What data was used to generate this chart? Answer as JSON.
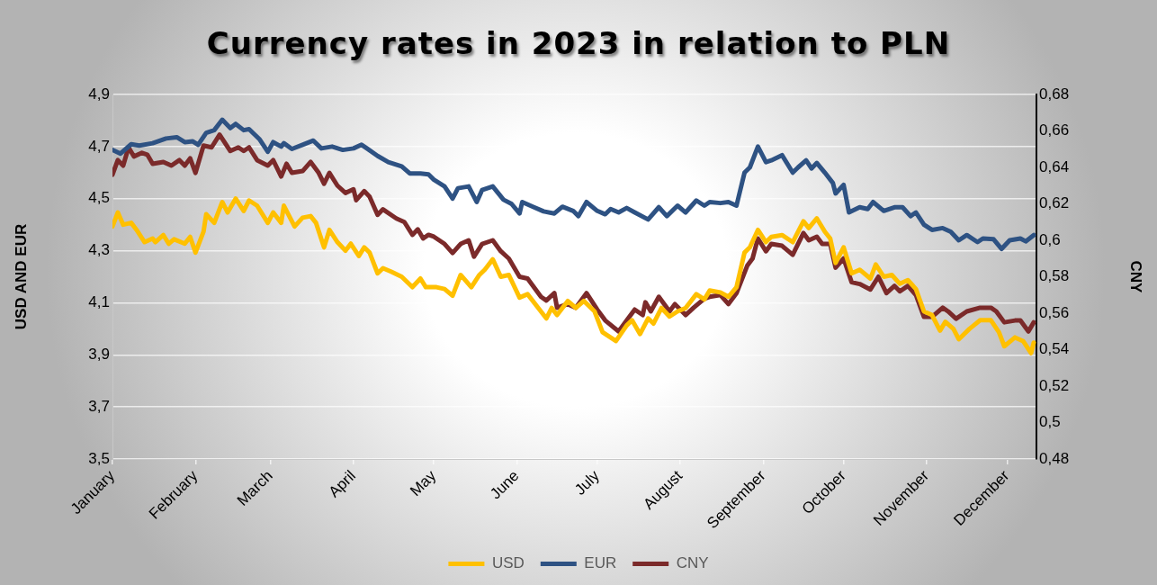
{
  "chart_data": {
    "type": "line",
    "title": "Currency rates in 2023 in relation to PLN",
    "ylabel": "USD AND EUR",
    "y2label": "CNY",
    "xlim": [
      "2023-01-01",
      "2023-12-12"
    ],
    "xticks": [
      {
        "value": "2023-01-01",
        "label": "January"
      },
      {
        "value": "2023-02-01",
        "label": "February"
      },
      {
        "value": "2023-03-01",
        "label": "March"
      },
      {
        "value": "2023-04-01",
        "label": "April"
      },
      {
        "value": "2023-05-01",
        "label": "May"
      },
      {
        "value": "2023-06-01",
        "label": "June"
      },
      {
        "value": "2023-07-01",
        "label": "July"
      },
      {
        "value": "2023-08-01",
        "label": "August"
      },
      {
        "value": "2023-09-01",
        "label": "September"
      },
      {
        "value": "2023-10-01",
        "label": "October"
      },
      {
        "value": "2023-11-01",
        "label": "November"
      },
      {
        "value": "2023-12-01",
        "label": "December"
      }
    ],
    "ylim": [
      3.5,
      4.9
    ],
    "yticks": [
      {
        "value": 3.5,
        "label": "3,5"
      },
      {
        "value": 3.7,
        "label": "3,7"
      },
      {
        "value": 3.9,
        "label": "3,9"
      },
      {
        "value": 4.1,
        "label": "4,1"
      },
      {
        "value": 4.3,
        "label": "4,3"
      },
      {
        "value": 4.5,
        "label": "4,5"
      },
      {
        "value": 4.7,
        "label": "4,7"
      },
      {
        "value": 4.9,
        "label": "4,9"
      }
    ],
    "y2lim": [
      0.48,
      0.68
    ],
    "y2ticks": [
      {
        "value": 0.48,
        "label": "0,48"
      },
      {
        "value": 0.5,
        "label": "0,5"
      },
      {
        "value": 0.52,
        "label": "0,52"
      },
      {
        "value": 0.54,
        "label": "0,54"
      },
      {
        "value": 0.56,
        "label": "0,56"
      },
      {
        "value": 0.58,
        "label": "0,58"
      },
      {
        "value": 0.6,
        "label": "0,6"
      },
      {
        "value": 0.62,
        "label": "0,62"
      },
      {
        "value": 0.64,
        "label": "0,64"
      },
      {
        "value": 0.66,
        "label": "0,66"
      },
      {
        "value": 0.68,
        "label": "0,68"
      }
    ],
    "grid": "y",
    "legend": "bottom",
    "marker": "none",
    "line_style": "solid",
    "series": [
      {
        "name": "USD",
        "color": "#ffc000",
        "x": [
          "2023-01-01",
          "2023-01-03",
          "2023-01-05",
          "2023-01-08",
          "2023-01-10",
          "2023-01-13",
          "2023-01-16",
          "2023-01-17",
          "2023-01-20",
          "2023-01-22",
          "2023-01-24",
          "2023-01-28",
          "2023-01-30",
          "2023-02-01",
          "2023-02-04",
          "2023-02-05",
          "2023-02-08",
          "2023-02-11",
          "2023-02-13",
          "2023-02-16",
          "2023-02-19",
          "2023-02-21",
          "2023-02-24",
          "2023-02-28",
          "2023-03-02",
          "2023-03-05",
          "2023-03-06",
          "2023-03-10",
          "2023-03-13",
          "2023-03-16",
          "2023-03-18",
          "2023-03-21",
          "2023-03-23",
          "2023-03-26",
          "2023-03-29",
          "2023-03-31",
          "2023-04-03",
          "2023-04-05",
          "2023-04-07",
          "2023-04-10",
          "2023-04-12",
          "2023-04-15",
          "2023-04-19",
          "2023-04-23",
          "2023-04-26",
          "2023-04-28",
          "2023-05-02",
          "2023-05-05",
          "2023-05-08",
          "2023-05-11",
          "2023-05-15",
          "2023-05-18",
          "2023-05-20",
          "2023-05-23",
          "2023-05-26",
          "2023-05-29",
          "2023-06-02",
          "2023-06-05",
          "2023-06-09",
          "2023-06-12",
          "2023-06-14",
          "2023-06-16",
          "2023-06-20",
          "2023-06-23",
          "2023-06-26",
          "2023-06-30",
          "2023-07-03",
          "2023-07-08",
          "2023-07-12",
          "2023-07-14",
          "2023-07-17",
          "2023-07-20",
          "2023-07-22",
          "2023-07-25",
          "2023-07-28",
          "2023-07-31",
          "2023-08-03",
          "2023-08-07",
          "2023-08-10",
          "2023-08-12",
          "2023-08-16",
          "2023-08-19",
          "2023-08-22",
          "2023-08-25",
          "2023-08-27",
          "2023-08-30",
          "2023-09-02",
          "2023-09-04",
          "2023-09-08",
          "2023-09-12",
          "2023-09-16",
          "2023-09-18",
          "2023-09-21",
          "2023-09-24",
          "2023-09-26",
          "2023-09-28",
          "2023-10-01",
          "2023-10-04",
          "2023-10-07",
          "2023-10-11",
          "2023-10-13",
          "2023-10-16",
          "2023-10-19",
          "2023-10-22",
          "2023-10-25",
          "2023-10-28",
          "2023-10-31",
          "2023-11-03",
          "2023-11-06",
          "2023-11-08",
          "2023-11-11",
          "2023-11-13",
          "2023-11-17",
          "2023-11-21",
          "2023-11-25",
          "2023-11-28",
          "2023-11-30",
          "2023-12-04",
          "2023-12-07",
          "2023-12-10",
          "2023-12-11"
        ],
        "values": [
          4.393,
          4.447,
          4.4,
          4.407,
          4.38,
          4.333,
          4.347,
          4.333,
          4.36,
          4.327,
          4.344,
          4.327,
          4.353,
          4.293,
          4.373,
          4.44,
          4.407,
          4.487,
          4.447,
          4.5,
          4.453,
          4.493,
          4.473,
          4.407,
          4.447,
          4.407,
          4.473,
          4.393,
          4.427,
          4.433,
          4.407,
          4.313,
          4.38,
          4.333,
          4.3,
          4.327,
          4.28,
          4.313,
          4.293,
          4.213,
          4.233,
          4.22,
          4.2,
          4.16,
          4.193,
          4.16,
          4.16,
          4.153,
          4.127,
          4.207,
          4.16,
          4.207,
          4.227,
          4.267,
          4.2,
          4.207,
          4.12,
          4.133,
          4.08,
          4.04,
          4.08,
          4.053,
          4.107,
          4.08,
          4.107,
          4.067,
          3.987,
          3.953,
          4.013,
          4.033,
          3.98,
          4.04,
          4.02,
          4.08,
          4.047,
          4.067,
          4.08,
          4.133,
          4.113,
          4.147,
          4.14,
          4.123,
          4.16,
          4.293,
          4.313,
          4.38,
          4.333,
          4.353,
          4.36,
          4.333,
          4.413,
          4.387,
          4.424,
          4.373,
          4.347,
          4.253,
          4.313,
          4.213,
          4.227,
          4.193,
          4.247,
          4.2,
          4.207,
          4.173,
          4.187,
          4.153,
          4.067,
          4.053,
          3.993,
          4.027,
          4,
          3.96,
          4,
          4.033,
          4.033,
          3.987,
          3.933,
          3.967,
          3.953,
          3.907,
          3.947
        ]
      },
      {
        "name": "EUR",
        "color": "#2e5283",
        "x": [
          "2023-01-01",
          "2023-01-04",
          "2023-01-08",
          "2023-01-11",
          "2023-01-16",
          "2023-01-21",
          "2023-01-25",
          "2023-01-28",
          "2023-01-31",
          "2023-02-02",
          "2023-02-05",
          "2023-02-08",
          "2023-02-11",
          "2023-02-14",
          "2023-02-16",
          "2023-02-19",
          "2023-02-21",
          "2023-02-25",
          "2023-02-28",
          "2023-03-02",
          "2023-03-05",
          "2023-03-06",
          "2023-03-09",
          "2023-03-13",
          "2023-03-17",
          "2023-03-20",
          "2023-03-24",
          "2023-03-28",
          "2023-04-01",
          "2023-04-04",
          "2023-04-06",
          "2023-04-10",
          "2023-04-14",
          "2023-04-19",
          "2023-04-22",
          "2023-04-26",
          "2023-04-29",
          "2023-05-01",
          "2023-05-05",
          "2023-05-08",
          "2023-05-10",
          "2023-05-14",
          "2023-05-17",
          "2023-05-19",
          "2023-05-23",
          "2023-05-27",
          "2023-05-30",
          "2023-06-02",
          "2023-06-03",
          "2023-06-07",
          "2023-06-11",
          "2023-06-15",
          "2023-06-18",
          "2023-06-22",
          "2023-06-24",
          "2023-06-27",
          "2023-07-01",
          "2023-07-04",
          "2023-07-06",
          "2023-07-09",
          "2023-07-12",
          "2023-07-15",
          "2023-07-20",
          "2023-07-24",
          "2023-07-27",
          "2023-07-31",
          "2023-08-03",
          "2023-08-07",
          "2023-08-10",
          "2023-08-12",
          "2023-08-16",
          "2023-08-19",
          "2023-08-22",
          "2023-08-25",
          "2023-08-27",
          "2023-08-30",
          "2023-09-02",
          "2023-09-04",
          "2023-09-08",
          "2023-09-12",
          "2023-09-14",
          "2023-09-17",
          "2023-09-19",
          "2023-09-21",
          "2023-09-24",
          "2023-09-27",
          "2023-09-28",
          "2023-10-01",
          "2023-10-03",
          "2023-10-07",
          "2023-10-10",
          "2023-10-12",
          "2023-10-16",
          "2023-10-20",
          "2023-10-23",
          "2023-10-26",
          "2023-10-28",
          "2023-10-31",
          "2023-11-03",
          "2023-11-07",
          "2023-11-10",
          "2023-11-13",
          "2023-11-16",
          "2023-11-20",
          "2023-11-22",
          "2023-11-26",
          "2023-11-29",
          "2023-12-02",
          "2023-12-06",
          "2023-12-08",
          "2023-12-11"
        ],
        "values": [
          4.687,
          4.673,
          4.709,
          4.704,
          4.713,
          4.731,
          4.736,
          4.717,
          4.72,
          4.707,
          4.753,
          4.763,
          4.803,
          4.771,
          4.787,
          4.763,
          4.767,
          4.727,
          4.68,
          4.717,
          4.7,
          4.713,
          4.691,
          4.707,
          4.723,
          4.693,
          4.7,
          4.687,
          4.693,
          4.707,
          4.693,
          4.664,
          4.64,
          4.624,
          4.597,
          4.597,
          4.593,
          4.573,
          4.547,
          4.5,
          4.54,
          4.547,
          4.487,
          4.533,
          4.547,
          4.496,
          4.48,
          4.443,
          4.487,
          4.469,
          4.451,
          4.443,
          4.469,
          4.453,
          4.433,
          4.487,
          4.453,
          4.44,
          4.46,
          4.447,
          4.464,
          4.447,
          4.42,
          4.467,
          4.433,
          4.473,
          4.447,
          4.493,
          4.473,
          4.487,
          4.483,
          4.487,
          4.473,
          4.6,
          4.62,
          4.7,
          4.64,
          4.647,
          4.667,
          4.6,
          4.62,
          4.647,
          4.616,
          4.637,
          4.6,
          4.56,
          4.52,
          4.553,
          4.447,
          4.467,
          4.46,
          4.487,
          4.453,
          4.467,
          4.467,
          4.433,
          4.447,
          4.4,
          4.38,
          4.387,
          4.373,
          4.34,
          4.36,
          4.333,
          4.347,
          4.344,
          4.307,
          4.34,
          4.347,
          4.336,
          4.36
        ]
      },
      {
        "name": "CNY",
        "color": "#7b2a2a",
        "axis": "y2",
        "x": [
          "2023-01-01",
          "2023-01-03",
          "2023-01-05",
          "2023-01-07",
          "2023-01-09",
          "2023-01-12",
          "2023-01-14",
          "2023-01-16",
          "2023-01-20",
          "2023-01-23",
          "2023-01-26",
          "2023-01-28",
          "2023-01-30",
          "2023-02-01",
          "2023-02-04",
          "2023-02-07",
          "2023-02-10",
          "2023-02-14",
          "2023-02-17",
          "2023-02-19",
          "2023-02-21",
          "2023-02-24",
          "2023-02-28",
          "2023-03-02",
          "2023-03-05",
          "2023-03-07",
          "2023-03-09",
          "2023-03-13",
          "2023-03-16",
          "2023-03-19",
          "2023-03-21",
          "2023-03-23",
          "2023-03-26",
          "2023-03-29",
          "2023-04-01",
          "2023-04-02",
          "2023-04-05",
          "2023-04-07",
          "2023-04-10",
          "2023-04-12",
          "2023-04-17",
          "2023-04-20",
          "2023-04-23",
          "2023-04-25",
          "2023-04-27",
          "2023-04-29",
          "2023-05-01",
          "2023-05-05",
          "2023-05-08",
          "2023-05-11",
          "2023-05-14",
          "2023-05-16",
          "2023-05-19",
          "2023-05-23",
          "2023-05-26",
          "2023-05-29",
          "2023-06-02",
          "2023-06-05",
          "2023-06-10",
          "2023-06-12",
          "2023-06-15",
          "2023-06-16",
          "2023-06-20",
          "2023-06-23",
          "2023-06-27",
          "2023-07-01",
          "2023-07-04",
          "2023-07-09",
          "2023-07-12",
          "2023-07-15",
          "2023-07-18",
          "2023-07-19",
          "2023-07-21",
          "2023-07-24",
          "2023-07-28",
          "2023-07-30",
          "2023-08-03",
          "2023-08-06",
          "2023-08-10",
          "2023-08-12",
          "2023-08-16",
          "2023-08-19",
          "2023-08-22",
          "2023-08-26",
          "2023-08-28",
          "2023-08-30",
          "2023-09-02",
          "2023-09-04",
          "2023-09-08",
          "2023-09-12",
          "2023-09-16",
          "2023-09-18",
          "2023-09-21",
          "2023-09-23",
          "2023-09-26",
          "2023-09-28",
          "2023-10-01",
          "2023-10-04",
          "2023-10-07",
          "2023-10-11",
          "2023-10-14",
          "2023-10-17",
          "2023-10-20",
          "2023-10-22",
          "2023-10-25",
          "2023-10-28",
          "2023-10-31",
          "2023-11-03",
          "2023-11-07",
          "2023-11-09",
          "2023-11-12",
          "2023-11-16",
          "2023-11-21",
          "2023-11-25",
          "2023-11-27",
          "2023-11-30",
          "2023-12-04",
          "2023-12-06",
          "2023-12-09",
          "2023-12-11"
        ],
        "values": [
          0.636,
          0.644,
          0.641,
          0.651,
          0.646,
          0.648,
          0.647,
          0.642,
          0.643,
          0.641,
          0.644,
          0.641,
          0.645,
          0.637,
          0.652,
          0.651,
          0.658,
          0.649,
          0.651,
          0.649,
          0.651,
          0.644,
          0.641,
          0.644,
          0.635,
          0.642,
          0.637,
          0.638,
          0.643,
          0.637,
          0.631,
          0.637,
          0.63,
          0.626,
          0.628,
          0.622,
          0.627,
          0.624,
          0.614,
          0.617,
          0.612,
          0.61,
          0.603,
          0.606,
          0.601,
          0.603,
          0.602,
          0.598,
          0.593,
          0.598,
          0.6,
          0.591,
          0.598,
          0.6,
          0.594,
          0.59,
          0.58,
          0.579,
          0.569,
          0.567,
          0.571,
          0.563,
          0.565,
          0.563,
          0.571,
          0.562,
          0.556,
          0.55,
          0.556,
          0.562,
          0.559,
          0.566,
          0.561,
          0.569,
          0.561,
          0.565,
          0.559,
          0.563,
          0.568,
          0.569,
          0.57,
          0.565,
          0.571,
          0.586,
          0.59,
          0.601,
          0.594,
          0.598,
          0.597,
          0.592,
          0.604,
          0.6,
          0.602,
          0.598,
          0.598,
          0.585,
          0.59,
          0.577,
          0.576,
          0.573,
          0.58,
          0.571,
          0.575,
          0.572,
          0.575,
          0.57,
          0.558,
          0.558,
          0.563,
          0.561,
          0.557,
          0.561,
          0.563,
          0.563,
          0.561,
          0.555,
          0.556,
          0.556,
          0.55,
          0.555
        ]
      }
    ]
  }
}
